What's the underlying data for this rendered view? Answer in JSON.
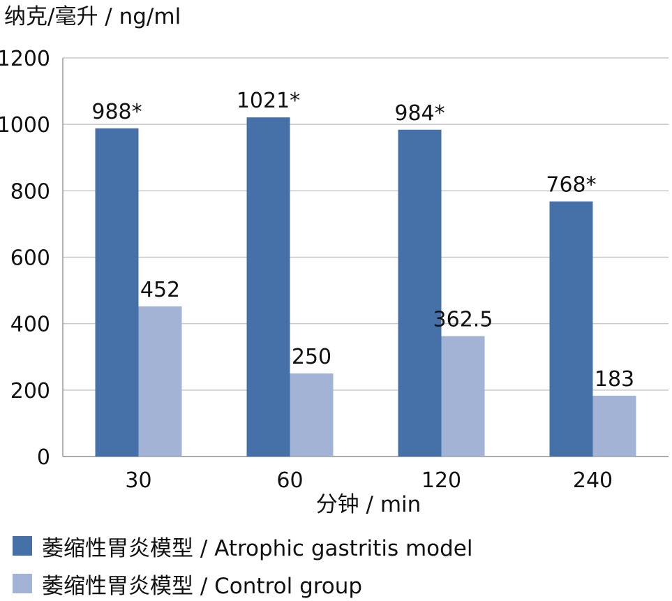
{
  "chart_data": {
    "type": "bar",
    "ylabel": "纳克/毫升 / ng/ml",
    "xlabel": "分钟 / min",
    "categories": [
      "30",
      "60",
      "120",
      "240"
    ],
    "ylim": [
      0,
      1200
    ],
    "yticks": [
      0,
      200,
      400,
      600,
      800,
      1000,
      1200
    ],
    "grid": "horizontal",
    "legend_placement": "bottom",
    "series": [
      {
        "name": "萎缩性胃炎模型 / Atrophic gastritis model",
        "values": [
          988,
          1021,
          984,
          768
        ],
        "labels": [
          "988*",
          "1021*",
          "984*",
          "768*"
        ],
        "color": "#4671a8"
      },
      {
        "name": "萎缩性胃炎模型 / Control group",
        "values": [
          452,
          250,
          362.5,
          183
        ],
        "labels": [
          "452",
          "250",
          "362.5",
          "183"
        ],
        "color": "#a2b3d6"
      }
    ]
  }
}
